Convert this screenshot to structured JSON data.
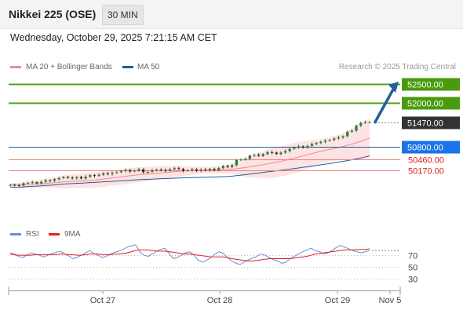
{
  "header": {
    "instrument": "Nikkei 225 (OSE)",
    "timeframe": "30 MIN",
    "timestamp": "Wednesday, October 29, 2025 7:21:15 AM CET"
  },
  "legend": {
    "ma20": "MA 20 + Bollinger Bands",
    "ma50": "MA 50",
    "credit": "Research © 2025 Trading Central"
  },
  "rsi_legend": {
    "rsi": "RSI",
    "ma": "9MA"
  },
  "colors": {
    "green": "#4ca311",
    "resist_label": "#4a9a0f",
    "blue": "#1f5f9a",
    "red": "#e02020",
    "candle_up": "#2e7d32",
    "candle_down": "#333333",
    "band": "#fde3e3",
    "rsi": "#6a8fd8",
    "rsi_ma": "#e02020",
    "current_label": "#333333"
  },
  "chart_data": [
    {
      "type": "candlestick",
      "title": "Nikkei 225 (OSE)",
      "x_ticks": [
        "Oct 27",
        "Oct 28",
        "Oct 29",
        "Nov 5"
      ],
      "levels": [
        {
          "value": 52500,
          "label": "52500.00",
          "kind": "target"
        },
        {
          "value": 52000,
          "label": "52000.00",
          "kind": "resistance"
        },
        {
          "value": 51470,
          "label": "51470.00",
          "kind": "current"
        },
        {
          "value": 50800,
          "label": "50800.00",
          "kind": "pivot"
        },
        {
          "value": 50460,
          "label": "50460.00",
          "kind": "support"
        },
        {
          "value": 50170,
          "label": "50170.00",
          "kind": "support"
        }
      ],
      "close": [
        49780,
        49770,
        49760,
        49820,
        49830,
        49850,
        49820,
        49860,
        49900,
        49890,
        49930,
        49960,
        49990,
        49970,
        49960,
        49990,
        49950,
        50000,
        50040,
        50020,
        50050,
        50090,
        50070,
        50100,
        50120,
        50150,
        50180,
        50140,
        50160,
        50200,
        50120,
        50130,
        50170,
        50190,
        50180,
        50160,
        50200,
        50230,
        50210,
        50160,
        50170,
        50200,
        50160,
        50190,
        50170,
        50210,
        50180,
        50230,
        50290,
        50260,
        50310,
        50450,
        50460,
        50480,
        50570,
        50590,
        50560,
        50610,
        50660,
        50650,
        50610,
        50650,
        50690,
        50750,
        50780,
        50820,
        50790,
        50830,
        50880,
        50910,
        50940,
        50970,
        50990,
        51030,
        51060,
        51090,
        51210,
        51240,
        51380,
        51450,
        51470,
        51470
      ],
      "projection": {
        "from": 51470,
        "to": 52500
      },
      "ylim": [
        49500,
        52700
      ]
    },
    {
      "type": "line",
      "title": "RSI",
      "series": [
        {
          "name": "RSI",
          "values": [
            74,
            72,
            68,
            66,
            70,
            74,
            72,
            70,
            67,
            70,
            73,
            75,
            77,
            72,
            69,
            64,
            66,
            70,
            74,
            78,
            73,
            70,
            66,
            68,
            72,
            75,
            77,
            80,
            84,
            86,
            88,
            76,
            70,
            68,
            72,
            77,
            80,
            82,
            73,
            64,
            66,
            70,
            74,
            76,
            70,
            61,
            58,
            61,
            66,
            72,
            76,
            73,
            66,
            60,
            56,
            54,
            58,
            62,
            65,
            68,
            72,
            70,
            66,
            62,
            60,
            56,
            58,
            64,
            68,
            72,
            76,
            79,
            82,
            78,
            76,
            72,
            74,
            78,
            83,
            87,
            84,
            81,
            78,
            76,
            74,
            76,
            78
          ]
        },
        {
          "name": "9MA",
          "values": [
            72,
            71,
            70,
            70,
            70,
            70,
            71,
            71,
            71,
            71,
            71,
            71,
            72,
            72,
            71,
            71,
            70,
            70,
            71,
            72,
            72,
            72,
            71,
            71,
            71,
            72,
            72,
            73,
            74,
            76,
            78,
            79,
            79,
            79,
            78,
            77,
            77,
            77,
            76,
            75,
            74,
            73,
            72,
            72,
            71,
            70,
            69,
            68,
            67,
            67,
            67,
            67,
            66,
            64,
            63,
            62,
            61,
            60,
            60,
            61,
            62,
            63,
            64,
            64,
            64,
            64,
            64,
            64,
            65,
            66,
            67,
            68,
            70,
            72,
            73,
            74,
            75,
            76,
            77,
            78,
            79,
            79,
            79,
            80,
            80,
            80,
            81
          ]
        }
      ],
      "ylim": [
        20,
        85
      ],
      "y_ticks": [
        70,
        50,
        30
      ]
    }
  ]
}
